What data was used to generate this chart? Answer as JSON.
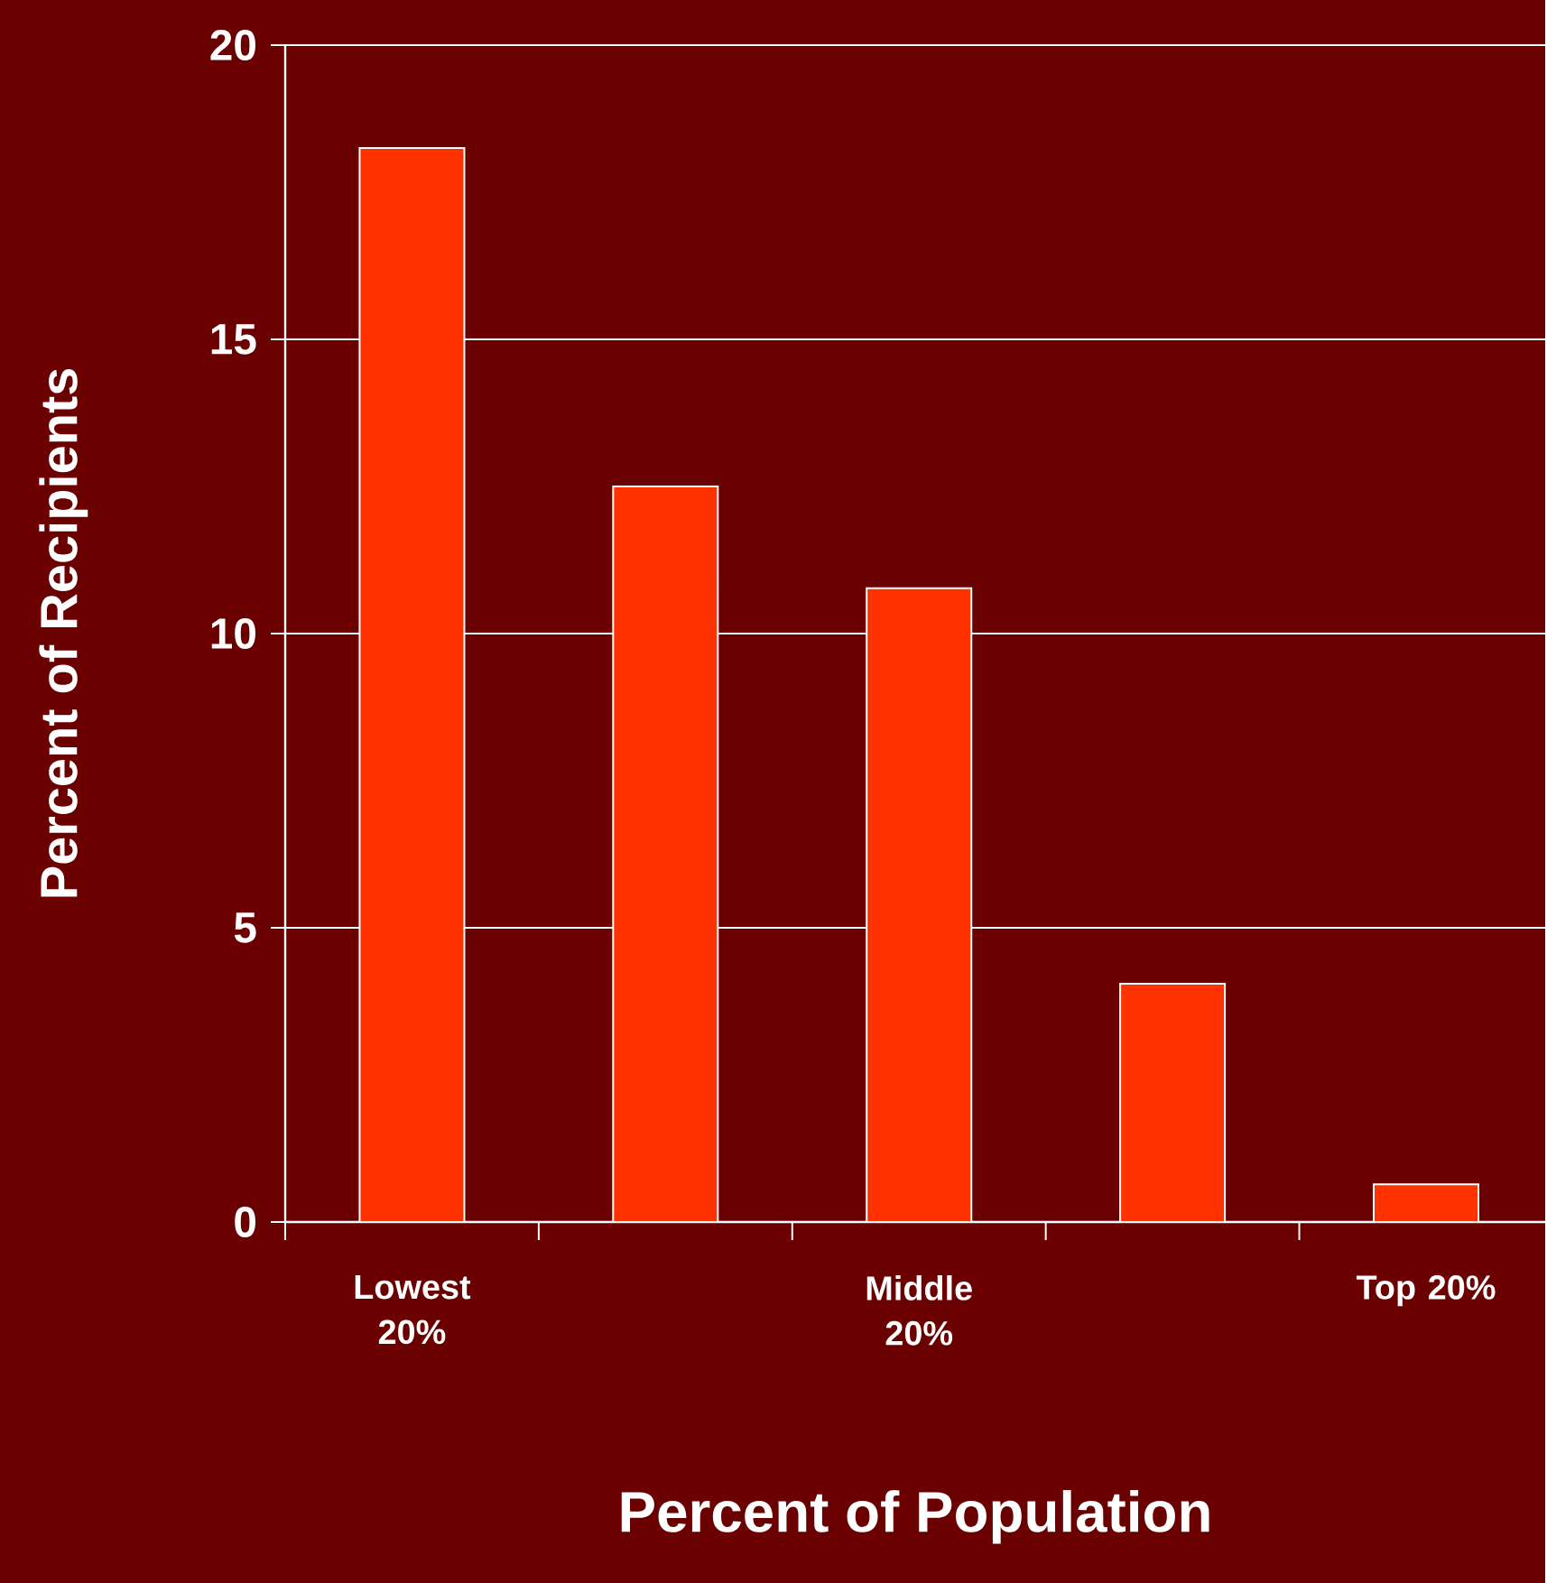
{
  "chart_data": {
    "type": "bar",
    "xlabel": "Percent of Population",
    "ylabel": "Percent of Recipients",
    "categories": [
      "Lowest 20%",
      null,
      "Middle 20%",
      null,
      "Top 20%"
    ],
    "values": [
      18.25,
      12.5,
      10.77,
      4.05,
      0.64
    ],
    "color": "#ff3300",
    "ylim": [
      0,
      20
    ],
    "yticks": [
      0,
      5,
      10,
      15,
      20
    ],
    "grid": "y"
  }
}
